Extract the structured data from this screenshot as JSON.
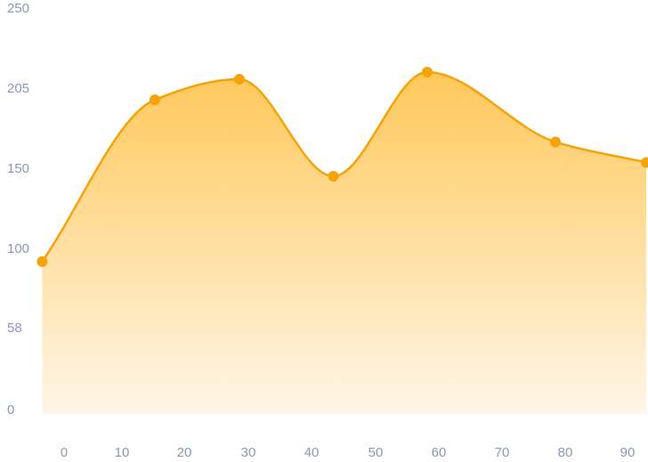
{
  "chart_data": {
    "type": "area",
    "title": "",
    "xlabel": "",
    "ylabel": "",
    "x_tick_labels": [
      "0",
      "10",
      "20",
      "30",
      "40",
      "50",
      "60",
      "70",
      "80",
      "90"
    ],
    "y_tick_labels": [
      "0",
      "58",
      "100",
      "150",
      "205",
      "250"
    ],
    "x_values_numeric": [
      0,
      10,
      20,
      30,
      40,
      50,
      60,
      70,
      80,
      90
    ],
    "grid": false,
    "legend": "none",
    "series": [
      {
        "x": [
          -3.5,
          14.5,
          28,
          43,
          58,
          78.5,
          93
        ],
        "values": [
          93,
          197,
          210,
          145,
          214,
          168,
          154
        ]
      }
    ],
    "colors": {
      "line": "#f5a30a",
      "point": "#f5a30a",
      "area_top": "#ffc85a",
      "area_bottom": "#fff6e8",
      "tick": "#8b98b5"
    }
  }
}
